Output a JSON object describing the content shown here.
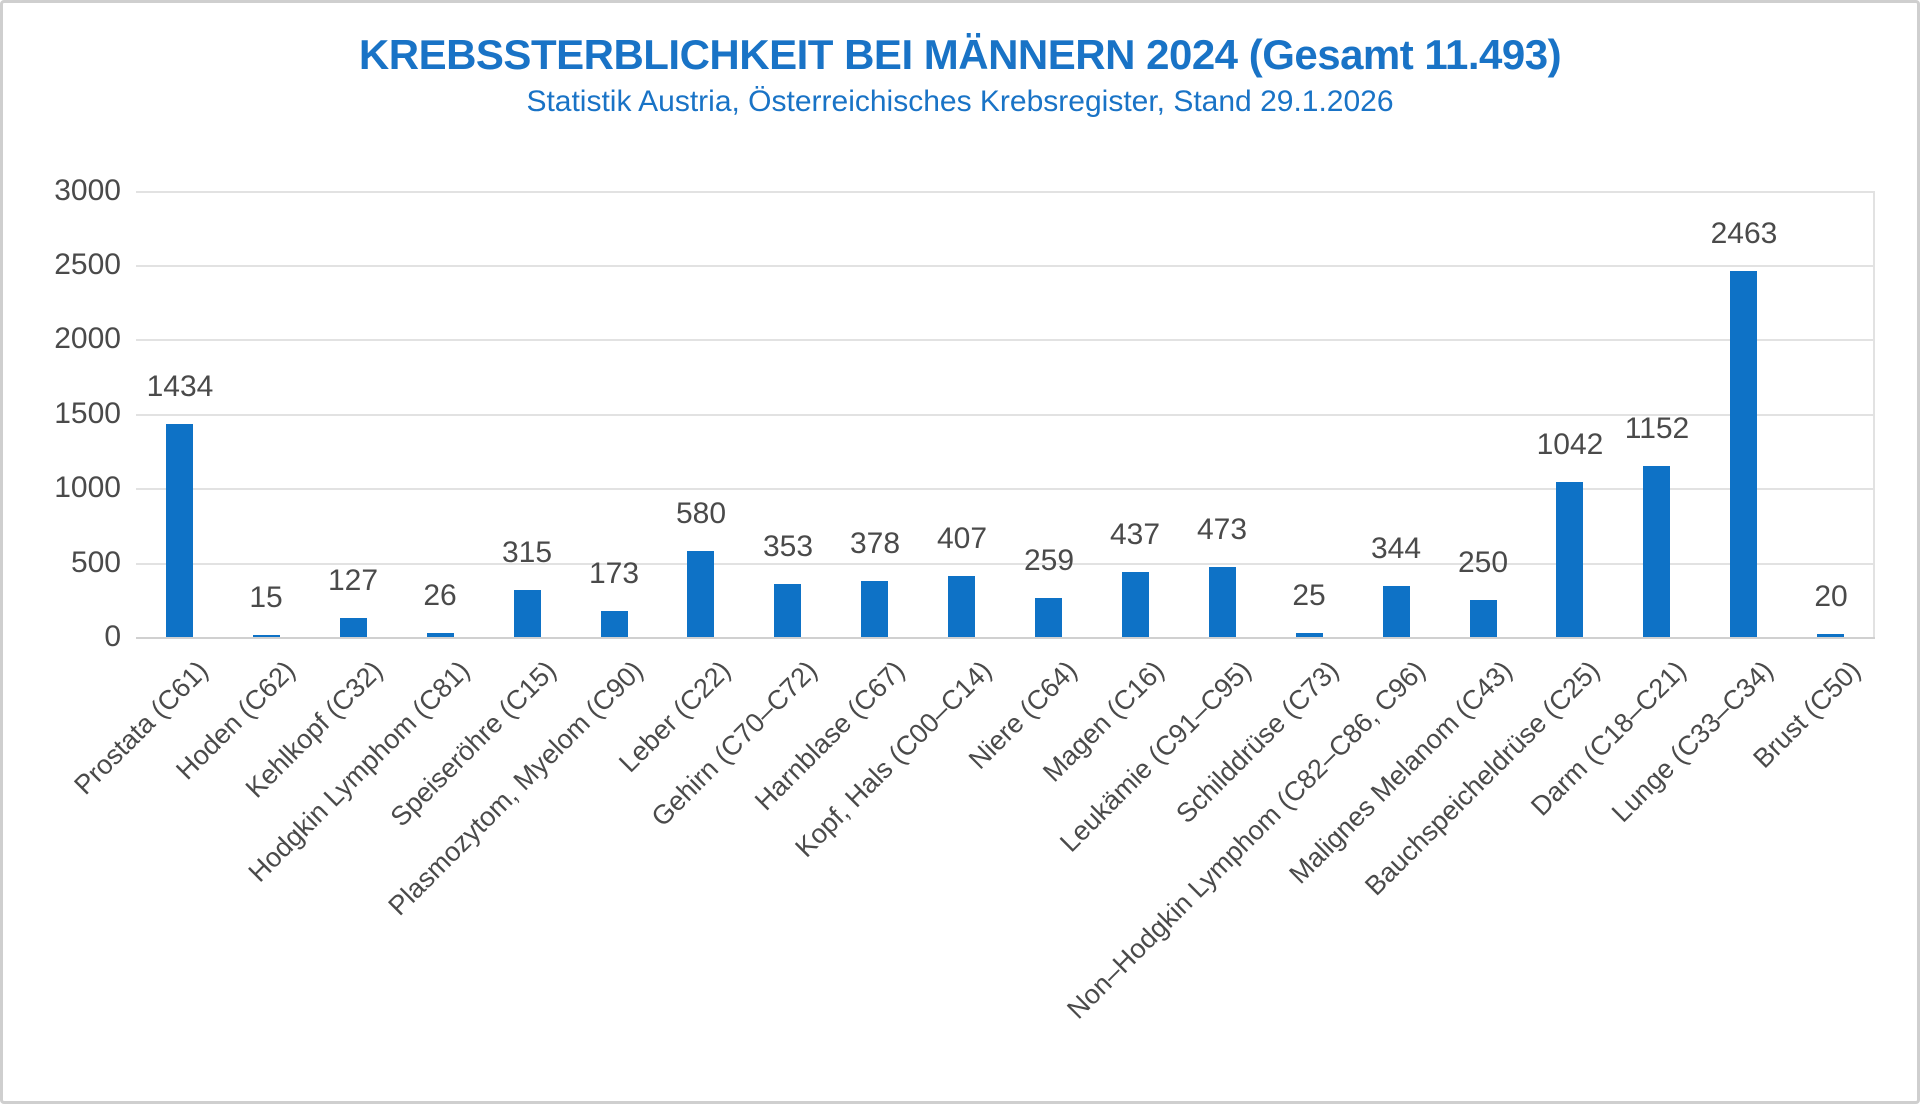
{
  "chart_data": {
    "type": "bar",
    "title": "KREBSSTERBLICHKEIT BEI MÄNNERN 2024 (Gesamt 11.493)",
    "subtitle": "Statistik Austria, Österreichisches Krebsregister, Stand 29.1.2026",
    "categories": [
      "Prostata (C61)",
      "Hoden (C62)",
      "Kehlkopf (C32)",
      "Hodgkin Lymphom (C81)",
      "Speiseröhre (C15)",
      "Plasmozytom, Myelom (C90)",
      "Leber (C22)",
      "Gehirn (C70–C72)",
      "Harnblase (C67)",
      "Kopf, Hals (C00–C14)",
      "Niere (C64)",
      "Magen (C16)",
      "Leukämie (C91–C95)",
      "Schilddrüse (C73)",
      "Non–Hodgkin Lymphom (C82–C86, C96)",
      "Malignes Melanom (C43)",
      "Bauchspeicheldrüse (C25)",
      "Darm (C18–C21)",
      "Lunge (C33–C34)",
      "Brust (C50)"
    ],
    "values": [
      1434,
      15,
      127,
      26,
      315,
      173,
      580,
      353,
      378,
      407,
      259,
      437,
      473,
      25,
      344,
      250,
      1042,
      1152,
      2463,
      20
    ],
    "xlabel": "",
    "ylabel": "",
    "ylim": [
      0,
      3000
    ],
    "y_ticks": [
      0,
      500,
      1000,
      1500,
      2000,
      2500,
      3000
    ],
    "grid": true,
    "legend": "none",
    "colors": {
      "bar": "#0E72C6",
      "title": "#1973C6",
      "subtitle": "#1973C6",
      "text": "#4A4A4A",
      "gridline": "#E2E2E2",
      "axis_line": "#D0D0D0",
      "frame_border": "#CFCFCF"
    }
  }
}
